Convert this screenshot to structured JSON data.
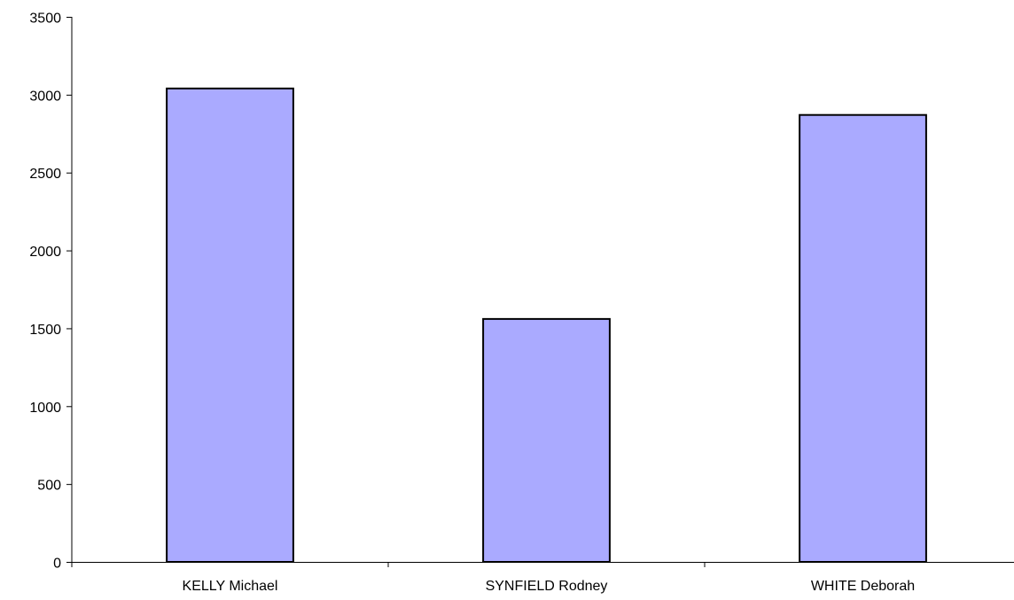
{
  "chart_data": {
    "type": "bar",
    "title": "",
    "xlabel": "",
    "ylabel": "",
    "categories": [
      "KELLY Michael",
      "SYNFIELD Rodney",
      "WHITE Deborah"
    ],
    "values": [
      3040,
      1560,
      2870
    ],
    "ylim": [
      0,
      3500
    ],
    "yticks": [
      0,
      500,
      1000,
      1500,
      2000,
      2500,
      3000,
      3500
    ],
    "grid": false,
    "legend": "none",
    "colors": {
      "bar_fill": "#aaaaff",
      "bar_stroke": "#000000",
      "axis": "#000000",
      "background": "#ffffff"
    }
  }
}
